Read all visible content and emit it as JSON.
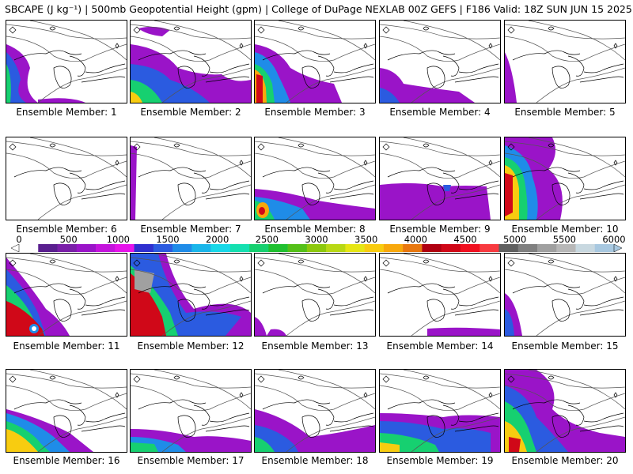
{
  "title": "SBCAPE (J kg⁻¹) | 500mb Geopotential Height (gpm) | College of DuPage NEXLAB 00Z GEFS | F186 Valid: 18Z SUN JUN 15 2025",
  "colorbar": {
    "labels": [
      "0",
      "500",
      "1000",
      "1500",
      "2000",
      "2500",
      "3000",
      "3500",
      "4000",
      "4500",
      "5000",
      "5500",
      "6000"
    ],
    "colors": [
      "#ffffff",
      "#5a1f8f",
      "#7a1fa8",
      "#9a14c8",
      "#c414dc",
      "#e614ea",
      "#2f2fcf",
      "#2b5be0",
      "#1f8ce8",
      "#1ab6ea",
      "#18d8e8",
      "#14e0b0",
      "#16d070",
      "#20c030",
      "#54c018",
      "#8cc80c",
      "#b8d814",
      "#e6e614",
      "#f8cc10",
      "#f8a80c",
      "#e87810",
      "#b00010",
      "#d00818",
      "#f01020",
      "#f83a40",
      "#606060",
      "#808080",
      "#a0a0a0",
      "#b8b8b8",
      "#c8d8e0",
      "#a8c8e0"
    ]
  },
  "members": [
    {
      "label": "Ensemble Member: 1"
    },
    {
      "label": "Ensemble Member: 2"
    },
    {
      "label": "Ensemble Member: 3"
    },
    {
      "label": "Ensemble Member: 4"
    },
    {
      "label": "Ensemble Member: 5"
    },
    {
      "label": "Ensemble Member: 6"
    },
    {
      "label": "Ensemble Member: 7"
    },
    {
      "label": "Ensemble Member: 8"
    },
    {
      "label": "Ensemble Member: 9"
    },
    {
      "label": "Ensemble Member: 10"
    },
    {
      "label": "Ensemble Member: 11"
    },
    {
      "label": "Ensemble Member: 12"
    },
    {
      "label": "Ensemble Member: 13"
    },
    {
      "label": "Ensemble Member: 14"
    },
    {
      "label": "Ensemble Member: 15"
    },
    {
      "label": "Ensemble Member: 16"
    },
    {
      "label": "Ensemble Member: 17"
    },
    {
      "label": "Ensemble Member: 18"
    },
    {
      "label": "Ensemble Member: 19"
    },
    {
      "label": "Ensemble Member: 20"
    }
  ]
}
